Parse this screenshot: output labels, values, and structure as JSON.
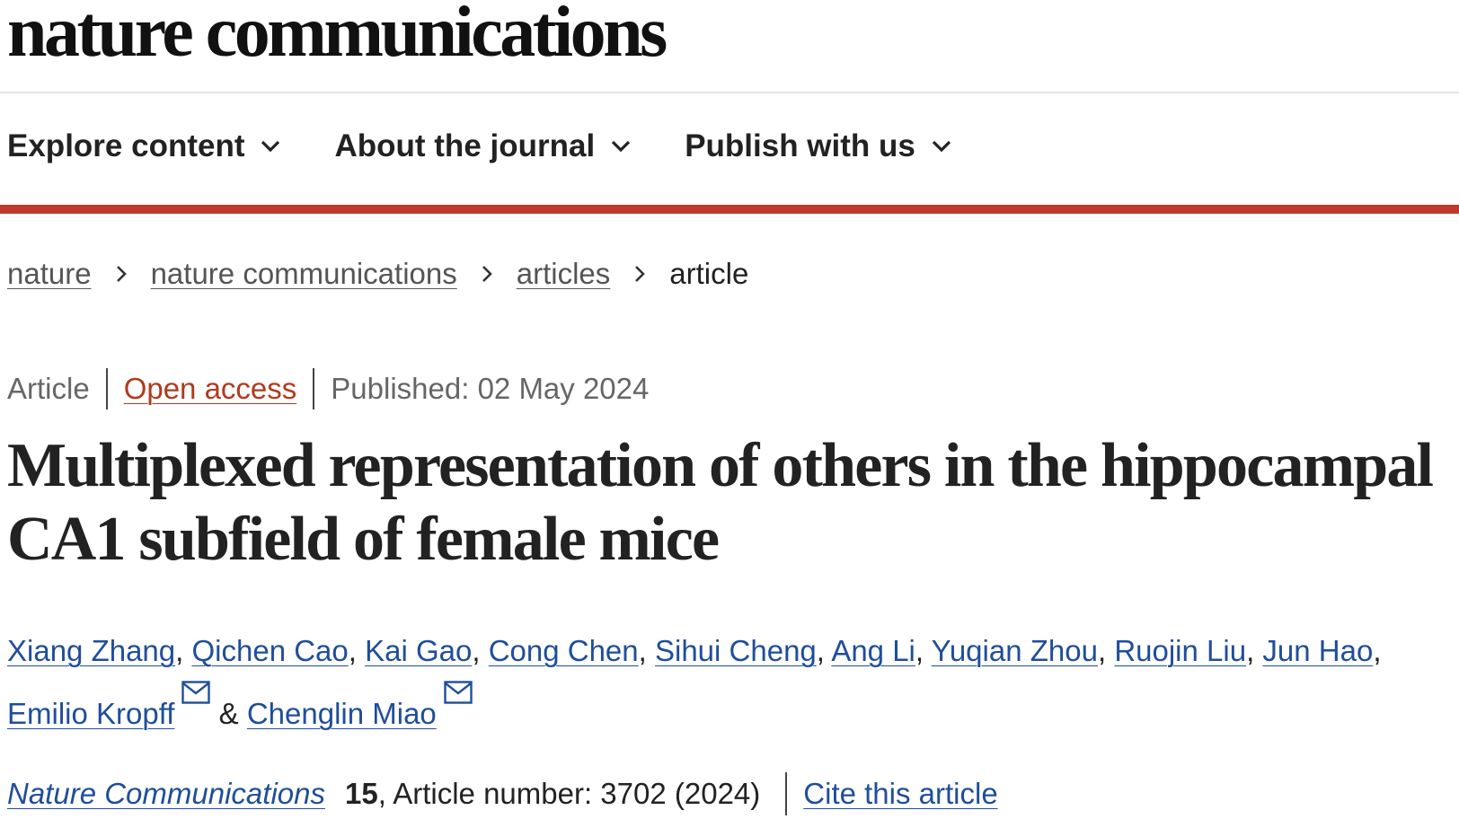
{
  "header": {
    "logo": "nature communications"
  },
  "nav": {
    "items": [
      {
        "label": "Explore content",
        "icon": "chevron-down-icon"
      },
      {
        "label": "About the journal",
        "icon": "chevron-down-icon"
      },
      {
        "label": "Publish with us",
        "icon": "chevron-down-icon"
      }
    ]
  },
  "colors": {
    "accent_bar": "#c0392b",
    "link": "#1f4e9b",
    "open_access": "#b03a1e"
  },
  "breadcrumb": {
    "items": [
      "nature",
      "nature communications",
      "articles"
    ],
    "current": "article"
  },
  "article": {
    "type": "Article",
    "access": "Open access",
    "published": "Published: 02 May 2024",
    "title": "Multiplexed representation of others in the hippocampal CA1 subfield of female mice",
    "authors": [
      "Xiang Zhang",
      "Qichen Cao",
      "Kai Gao",
      "Cong Chen",
      "Sihui Cheng",
      "Ang Li",
      "Yuqian Zhou",
      "Ruojin Liu",
      "Jun Hao",
      "Emilio Kropff",
      "Chenglin Miao"
    ],
    "author_separator": ", ",
    "author_and": "&",
    "journal": "Nature Communications",
    "volume": "15",
    "article_number": ", Article number: 3702 (2024)",
    "cite_label": "Cite this article"
  }
}
